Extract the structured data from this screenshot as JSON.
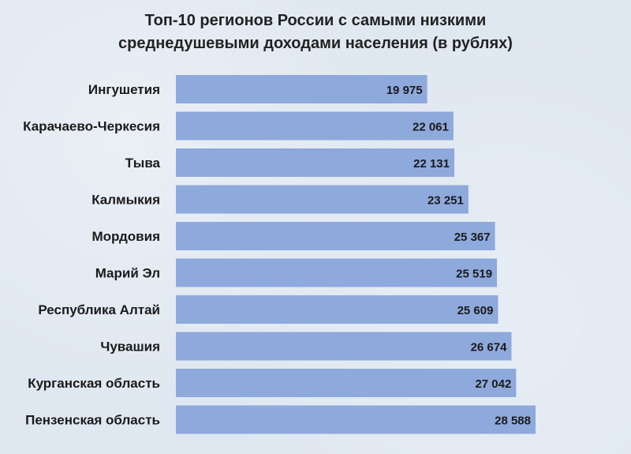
{
  "chart_data": {
    "type": "bar",
    "orientation": "horizontal",
    "title_lines": [
      "Топ-10 регионов России с самыми низкими",
      "среднедушевыми доходами населения (в рублях)"
    ],
    "categories": [
      "Ингушетия",
      "Карачаево-Черкесия",
      "Тыва",
      "Калмыкия",
      "Мордовия",
      "Марий Эл",
      "Республика Алтай",
      "Чувашия",
      "Курганская область",
      "Пензенская область"
    ],
    "values": [
      19975,
      22061,
      22131,
      23251,
      25367,
      25519,
      25609,
      26674,
      27042,
      28588
    ],
    "value_labels": [
      "19 975",
      "22 061",
      "22 131",
      "23 251",
      "25 367",
      "25 519",
      "25 609",
      "26 674",
      "27 042",
      "28 588"
    ],
    "bar_color": "#8ea9dc",
    "grid": false,
    "legend": "none"
  }
}
